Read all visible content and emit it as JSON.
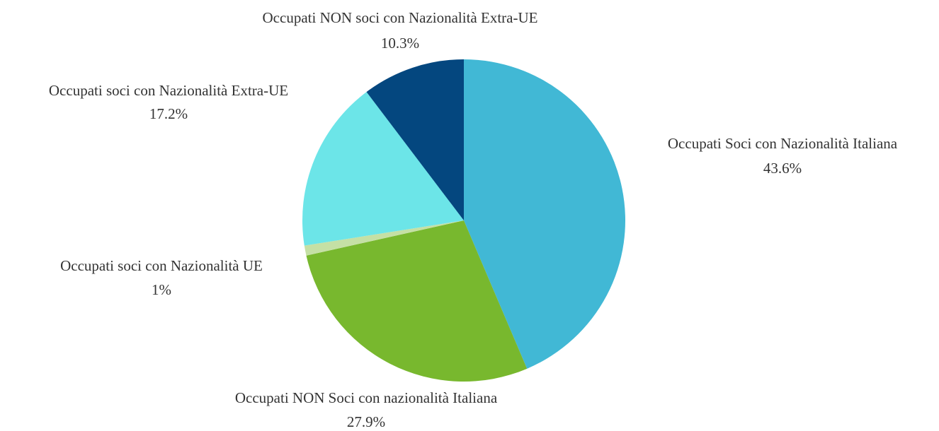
{
  "chart_data": {
    "type": "pie",
    "categories": [
      "Occupati Soci con Nazionalità Italiana",
      "Occupati NON Soci con nazionalità Italiana",
      "Occupati soci con Nazionalità UE",
      "Occupati soci con Nazionalità Extra-UE",
      "Occupati NON soci con Nazionalità Extra-UE"
    ],
    "values": [
      43.6,
      27.9,
      1,
      17.2,
      10.3
    ],
    "value_labels": [
      "43.6%",
      "27.9%",
      "1%",
      "17.2%",
      "10.3%"
    ],
    "colors": [
      "#41b8d5",
      "#78b82e",
      "#c5e0a5",
      "#6ce5e8",
      "#04477f"
    ]
  }
}
